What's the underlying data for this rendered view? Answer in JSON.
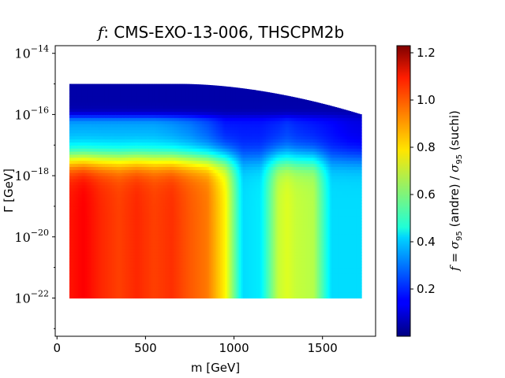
{
  "chart_data": {
    "type": "heatmap",
    "title": {
      "prefix": "f",
      "text": ": CMS-EXO-13-006, THSCPM2b"
    },
    "xlabel": "m [GeV]",
    "ylabel": "Γ [GeV]",
    "x_scale": "linear",
    "y_scale": "log",
    "xlim": [
      -10,
      1800
    ],
    "ylim_exponent": [
      -23.25,
      -13.75
    ],
    "x_ticks": [
      0,
      500,
      1000,
      1500
    ],
    "x_tick_labels": [
      "0",
      "500",
      "1000",
      "1500"
    ],
    "y_ticks_exponent": [
      -22,
      -20,
      -18,
      -16,
      -14
    ],
    "y_tick_labels": [
      "10",
      "10",
      "10",
      "10",
      "10"
    ],
    "y_tick_exponents": [
      "−22",
      "−20",
      "−18",
      "−16",
      "−14"
    ],
    "colormap": "jet",
    "colorbar": {
      "range": [
        0.0,
        1.23
      ],
      "ticks": [
        0.2,
        0.4,
        0.6,
        0.8,
        1.0,
        1.2
      ],
      "tick_labels": [
        "0.2",
        "0.4",
        "0.6",
        "0.8",
        "1.0",
        "1.2"
      ],
      "label": "f = σ95 (andre) / σ95 (suchi)"
    },
    "data_extent": {
      "m_range": [
        70,
        1720
      ],
      "gamma_exponent_min": -22,
      "gamma_exponent_max_at_low_mass": -15.0,
      "gamma_exponent_max_at_high_mass": -16.0
    },
    "grid": false,
    "region_values_by_mass": {
      "m": [
        70,
        150,
        250,
        350,
        450,
        550,
        650,
        750,
        850,
        950,
        1050,
        1150,
        1250,
        1300,
        1350,
        1450,
        1550,
        1650,
        1720
      ],
      "f_low_gamma": [
        1.05,
        1.08,
        1.03,
        1.0,
        1.03,
        1.0,
        1.02,
        0.97,
        0.93,
        0.78,
        0.42,
        0.44,
        0.7,
        0.73,
        0.7,
        0.68,
        0.42,
        0.42,
        0.42
      ],
      "f_high_gamma_band": [
        0.35,
        0.35,
        0.35,
        0.35,
        0.35,
        0.35,
        0.33,
        0.3,
        0.25,
        0.18,
        0.18,
        0.18,
        0.2,
        0.22,
        0.2,
        0.18,
        0.16,
        0.13,
        0.12
      ],
      "f_top_band": [
        0.05,
        0.05,
        0.05,
        0.05,
        0.05,
        0.05,
        0.05,
        0.05,
        0.05,
        0.05,
        0.05,
        0.05,
        0.05,
        0.05,
        0.05,
        0.05,
        0.05,
        0.05,
        0.05
      ]
    }
  }
}
